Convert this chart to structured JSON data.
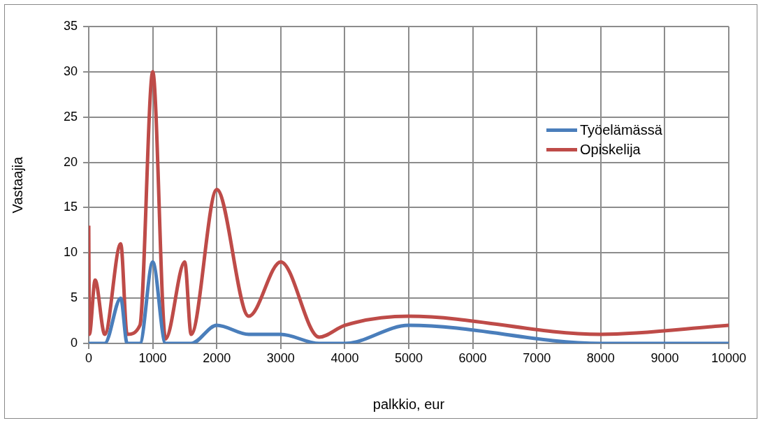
{
  "chart_data": {
    "type": "line",
    "xlabel": "palkkio, eur",
    "ylabel": "Vastaajia",
    "x": [
      0,
      10,
      100,
      250,
      500,
      600,
      800,
      1000,
      1200,
      1500,
      1600,
      2000,
      2500,
      3000,
      3600,
      4000,
      5000,
      8000,
      10000
    ],
    "series": [
      {
        "name": "Työelämässä",
        "color": "#4a7ebb",
        "values": [
          0,
          0,
          0,
          0,
          5,
          0,
          0,
          9,
          0,
          0,
          0,
          2,
          1,
          1,
          0,
          0,
          2,
          0,
          0
        ]
      },
      {
        "name": "Opiskelija",
        "color": "#be4b48",
        "values": [
          13,
          1,
          7,
          1,
          11,
          1,
          2,
          30,
          0.5,
          9,
          1,
          17,
          3,
          9,
          0.7,
          2,
          3,
          1,
          2
        ]
      }
    ],
    "xlim": [
      0,
      10000
    ],
    "xticks": [
      0,
      1000,
      2000,
      3000,
      4000,
      5000,
      6000,
      7000,
      8000,
      9000,
      10000
    ],
    "ylim": [
      0,
      35
    ],
    "yticks": [
      0,
      5,
      10,
      15,
      20,
      25,
      30,
      35
    ],
    "grid": true,
    "legend": "right",
    "marker": "none",
    "line_style": "solid"
  }
}
